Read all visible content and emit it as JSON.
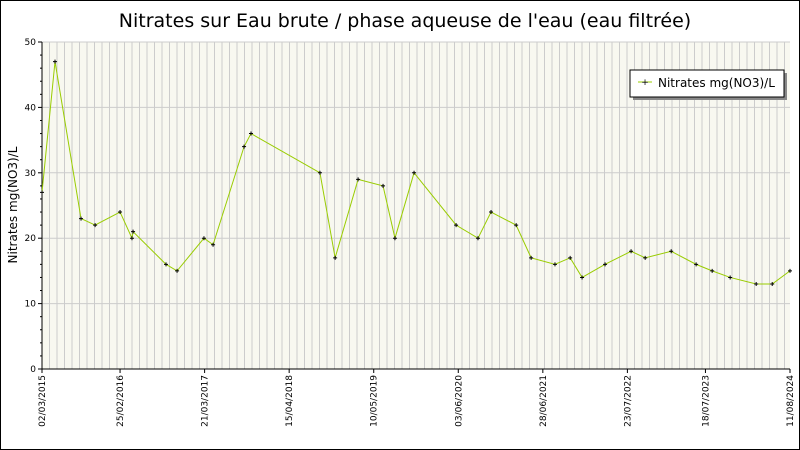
{
  "chart_data": {
    "type": "line",
    "title": "Nitrates sur Eau brute / phase aqueuse de l'eau (eau filtrée)",
    "ylabel": "Nitrates mg(NO3)/L",
    "xlabel": "",
    "ylim": [
      0,
      50
    ],
    "xlim": [
      "2015-03-02",
      "2024-08-11"
    ],
    "yticks": [
      "0",
      "10",
      "20",
      "30",
      "40",
      "50"
    ],
    "xticks": [
      "02/03/2015",
      "25/02/2016",
      "21/03/2017",
      "15/04/2018",
      "10/05/2019",
      "03/06/2020",
      "28/06/2021",
      "23/07/2022",
      "18/07/2023",
      "11/08/2024"
    ],
    "xtick_dates": [
      "2015-03-02",
      "2016-02-25",
      "2017-03-21",
      "2018-04-15",
      "2019-05-10",
      "2020-06-03",
      "2021-06-28",
      "2022-07-23",
      "2023-07-18",
      "2024-08-11"
    ],
    "grid": true,
    "legend": "top-right",
    "colors": {
      "line": "#99cc00",
      "marker": "#000000",
      "plot_bg": "#f8f8f0",
      "grid": "#cccccc"
    },
    "series": [
      {
        "name": "Nitrates mg(NO3)/L",
        "x": [
          "2015-03-02",
          "2015-05-01",
          "2015-08-29",
          "2015-11-02",
          "2016-02-25",
          "2016-04-20",
          "2016-04-25",
          "2016-09-24",
          "2016-11-14",
          "2017-03-18",
          "2017-04-29",
          "2017-09-19",
          "2017-10-21",
          "2018-09-04",
          "2018-11-13",
          "2019-02-27",
          "2019-06-22",
          "2019-08-16",
          "2019-11-12",
          "2020-05-24",
          "2020-09-02",
          "2020-11-01",
          "2021-02-25",
          "2021-05-05",
          "2021-08-23",
          "2021-11-01",
          "2021-12-26",
          "2022-04-11",
          "2022-08-09",
          "2022-10-13",
          "2023-02-10",
          "2023-06-05",
          "2023-08-18",
          "2023-11-09",
          "2024-03-08",
          "2024-05-21",
          "2024-08-11"
        ],
        "y": [
          27,
          47,
          23,
          22,
          24,
          20,
          21,
          16,
          15,
          20,
          19,
          34,
          36,
          30,
          17,
          29,
          28,
          20,
          30,
          22,
          20,
          24,
          22,
          17,
          16,
          17,
          14,
          16,
          18,
          17,
          18,
          16,
          15,
          14,
          13,
          13,
          15
        ]
      }
    ]
  }
}
